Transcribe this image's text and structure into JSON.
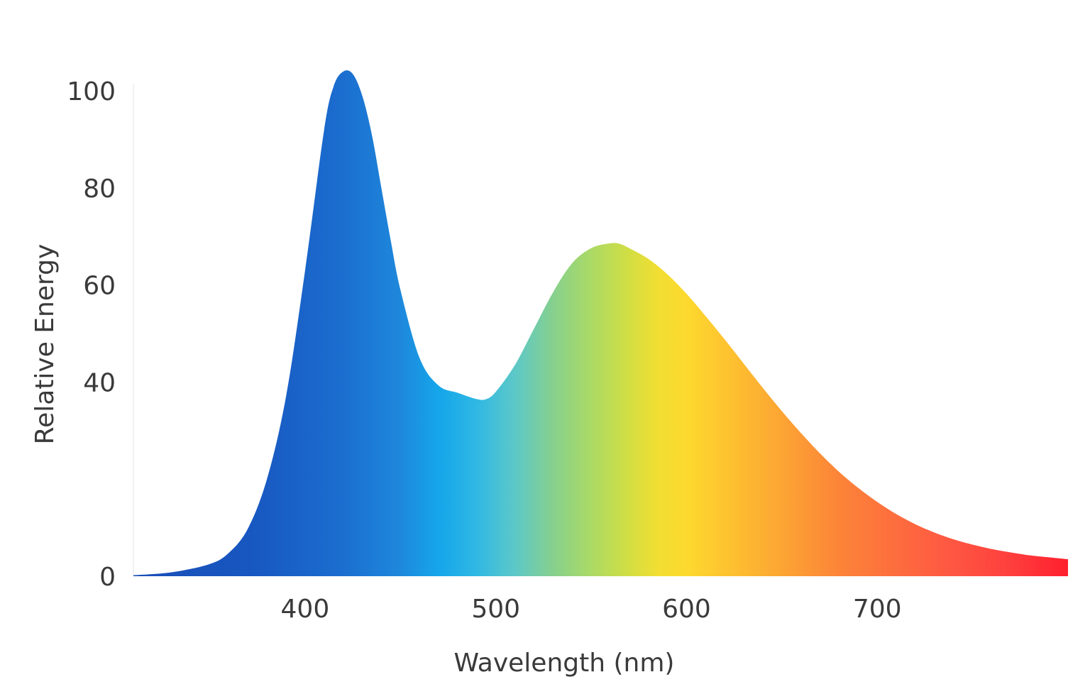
{
  "chart_data": {
    "type": "area",
    "title": "",
    "xlabel": "Wavelength (nm)",
    "ylabel": "Relative Energy",
    "xlim": [
      310,
      800
    ],
    "ylim": [
      0,
      105
    ],
    "x_ticks": [
      400,
      500,
      600,
      700
    ],
    "y_ticks": [
      0,
      40,
      60,
      80,
      100
    ],
    "grid": false,
    "legend": "none",
    "series": [
      {
        "x": [
          310,
          330,
          350,
          360,
          370,
          380,
          390,
          400,
          410,
          415,
          420,
          425,
          430,
          435,
          440,
          445,
          450,
          460,
          470,
          480,
          490,
          495,
          500,
          510,
          520,
          530,
          540,
          550,
          560,
          565,
          570,
          580,
          590,
          600,
          610,
          620,
          630,
          640,
          650,
          660,
          670,
          680,
          690,
          700,
          710,
          720,
          730,
          740,
          750,
          760,
          770,
          780,
          790,
          800
        ],
        "y": [
          0.2,
          0.8,
          2.5,
          4.8,
          9.8,
          20,
          37,
          63,
          92,
          101,
          104,
          103.5,
          99,
          91,
          80,
          69,
          59,
          45,
          39.3,
          37.8,
          36.5,
          36.5,
          38,
          43.5,
          51,
          58.5,
          64.5,
          67.6,
          68.6,
          68.5,
          67.6,
          65.4,
          62.2,
          58.2,
          53.6,
          48.8,
          43.8,
          38.8,
          34,
          29.5,
          25.3,
          21.5,
          18.2,
          15.3,
          12.8,
          10.7,
          9,
          7.6,
          6.5,
          5.6,
          4.9,
          4.3,
          3.9,
          3.5
        ]
      }
    ],
    "gradient_stops": [
      {
        "nm": 310,
        "color": "#1a4fb8"
      },
      {
        "nm": 370,
        "color": "#1856c0"
      },
      {
        "nm": 420,
        "color": "#1b6ecf"
      },
      {
        "nm": 450,
        "color": "#1e88dc"
      },
      {
        "nm": 470,
        "color": "#15a6ea"
      },
      {
        "nm": 490,
        "color": "#30b8e4"
      },
      {
        "nm": 510,
        "color": "#5dc8c8"
      },
      {
        "nm": 530,
        "color": "#86d08e"
      },
      {
        "nm": 550,
        "color": "#abda65"
      },
      {
        "nm": 570,
        "color": "#d2de42"
      },
      {
        "nm": 585,
        "color": "#f2de32"
      },
      {
        "nm": 600,
        "color": "#fdd92e"
      },
      {
        "nm": 625,
        "color": "#fdbf30"
      },
      {
        "nm": 650,
        "color": "#fca533"
      },
      {
        "nm": 680,
        "color": "#fc8438"
      },
      {
        "nm": 710,
        "color": "#fd6d3e"
      },
      {
        "nm": 740,
        "color": "#fe5642"
      },
      {
        "nm": 770,
        "color": "#fe3f3d"
      },
      {
        "nm": 800,
        "color": "#ff1f2e"
      }
    ],
    "axis_color": "#eeeeee"
  }
}
